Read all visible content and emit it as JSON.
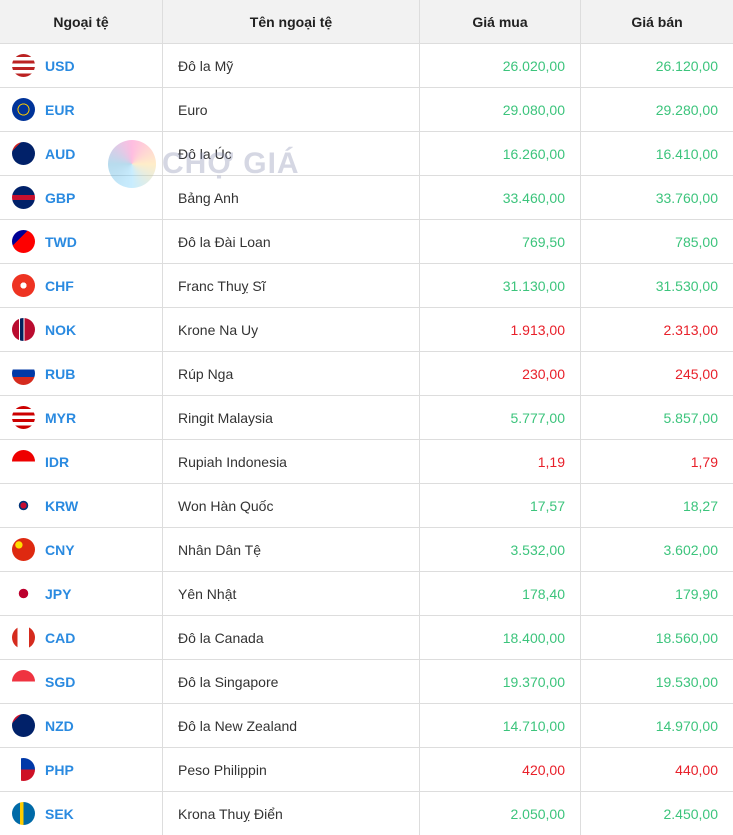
{
  "headers": [
    "Ngoại tệ",
    "Tên ngoại tệ",
    "Giá mua",
    "Giá bán"
  ],
  "watermark": "CHỢ GIÁ",
  "colors": {
    "up": "#3cc47c",
    "down": "#e8202a",
    "code": "#2a8ae0"
  },
  "rows": [
    {
      "code": "USD",
      "name": "Đô la Mỹ",
      "buy": "26.020,00",
      "sell": "26.120,00",
      "trend": "up",
      "flag": "linear-gradient(#b22 0 14%,#fff 14% 28%,#b22 28% 42%,#fff 42% 56%,#b22 56% 70%,#fff 70% 84%,#b22 84%)"
    },
    {
      "code": "EUR",
      "name": "Euro",
      "buy": "29.080,00",
      "sell": "29.280,00",
      "trend": "up",
      "flag": "radial-gradient(circle,#039 30%,#fc0 32%,#fc0 36%,#039 38%)"
    },
    {
      "code": "AUD",
      "name": "Đô la Úc",
      "buy": "16.260,00",
      "sell": "16.410,00",
      "trend": "up",
      "flag": "linear-gradient(135deg,#c22 0 20%,#012169 20%)"
    },
    {
      "code": "GBP",
      "name": "Bảng Anh",
      "buy": "33.460,00",
      "sell": "33.760,00",
      "trend": "up",
      "flag": "linear-gradient(#012169 0 40%,#c8102e 40% 60%,#012169 60%)"
    },
    {
      "code": "TWD",
      "name": "Đô la Đài Loan",
      "buy": "769,50",
      "sell": "785,00",
      "trend": "up",
      "flag": "linear-gradient(135deg,#000095 0 35%,#fe0000 35%)"
    },
    {
      "code": "CHF",
      "name": "Franc Thuỵ Sĩ",
      "buy": "31.130,00",
      "sell": "31.530,00",
      "trend": "up",
      "flag": "radial-gradient(circle,#fff 18%,#e32 20%)"
    },
    {
      "code": "NOK",
      "name": "Krone Na Uy",
      "buy": "1.913,00",
      "sell": "2.313,00",
      "trend": "down",
      "flag": "linear-gradient(90deg,#ba0c2f 0 30%,#fff 30% 35%,#00205b 35% 50%,#fff 50% 55%,#ba0c2f 55%)"
    },
    {
      "code": "RUB",
      "name": "Rúp Nga",
      "buy": "230,00",
      "sell": "245,00",
      "trend": "down",
      "flag": "linear-gradient(#fff 0 33%,#0039a6 33% 66%,#d52b1e 66%)"
    },
    {
      "code": "MYR",
      "name": "Ringit Malaysia",
      "buy": "5.777,00",
      "sell": "5.857,00",
      "trend": "up",
      "flag": "linear-gradient(#c00 0 14%,#fff 14% 28%,#c00 28% 42%,#fff 42% 56%,#c00 56% 70%,#fff 70% 84%,#c00 84%)"
    },
    {
      "code": "IDR",
      "name": "Rupiah Indonesia",
      "buy": "1,19",
      "sell": "1,79",
      "trend": "down",
      "flag": "linear-gradient(#e00 0 50%,#fff 50%)"
    },
    {
      "code": "KRW",
      "name": "Won Hàn Quốc",
      "buy": "17,57",
      "sell": "18,27",
      "trend": "up",
      "flag": "radial-gradient(circle,#c60c30 0 18%,#003478 20% 28%,#fff 30%)"
    },
    {
      "code": "CNY",
      "name": "Nhân Dân Tệ",
      "buy": "3.532,00",
      "sell": "3.602,00",
      "trend": "up",
      "flag": "radial-gradient(circle at 30% 30%,#ffde00 15%,#de2910 17%)"
    },
    {
      "code": "JPY",
      "name": "Yên Nhật",
      "buy": "178,40",
      "sell": "179,90",
      "trend": "up",
      "flag": "radial-gradient(circle,#bc002d 28%,#fff 30%)"
    },
    {
      "code": "CAD",
      "name": "Đô la Canada",
      "buy": "18.400,00",
      "sell": "18.560,00",
      "trend": "up",
      "flag": "linear-gradient(90deg,#d52b1e 0 25%,#fff 25% 75%,#d52b1e 75%)"
    },
    {
      "code": "SGD",
      "name": "Đô la Singapore",
      "buy": "19.370,00",
      "sell": "19.530,00",
      "trend": "up",
      "flag": "linear-gradient(#ef3340 0 50%,#fff 50%)"
    },
    {
      "code": "NZD",
      "name": "Đô la New Zealand",
      "buy": "14.710,00",
      "sell": "14.970,00",
      "trend": "up",
      "flag": "linear-gradient(135deg,#c8102e 0 20%,#012169 20%)"
    },
    {
      "code": "PHP",
      "name": "Peso Philippin",
      "buy": "420,00",
      "sell": "440,00",
      "trend": "down",
      "flag": "linear-gradient(90deg,#fff 0 40%,transparent 40%),linear-gradient(#0038a8 0 50%,#ce1126 50%)"
    },
    {
      "code": "SEK",
      "name": "Krona Thuỵ Điển",
      "buy": "2.050,00",
      "sell": "2.450,00",
      "trend": "up",
      "flag": "linear-gradient(90deg,#006aa7 0 35%,#fecc00 35% 50%,#006aa7 50%),linear-gradient(#006aa7 0 42%,#fecc00 42% 58%,#006aa7 58%)"
    }
  ]
}
